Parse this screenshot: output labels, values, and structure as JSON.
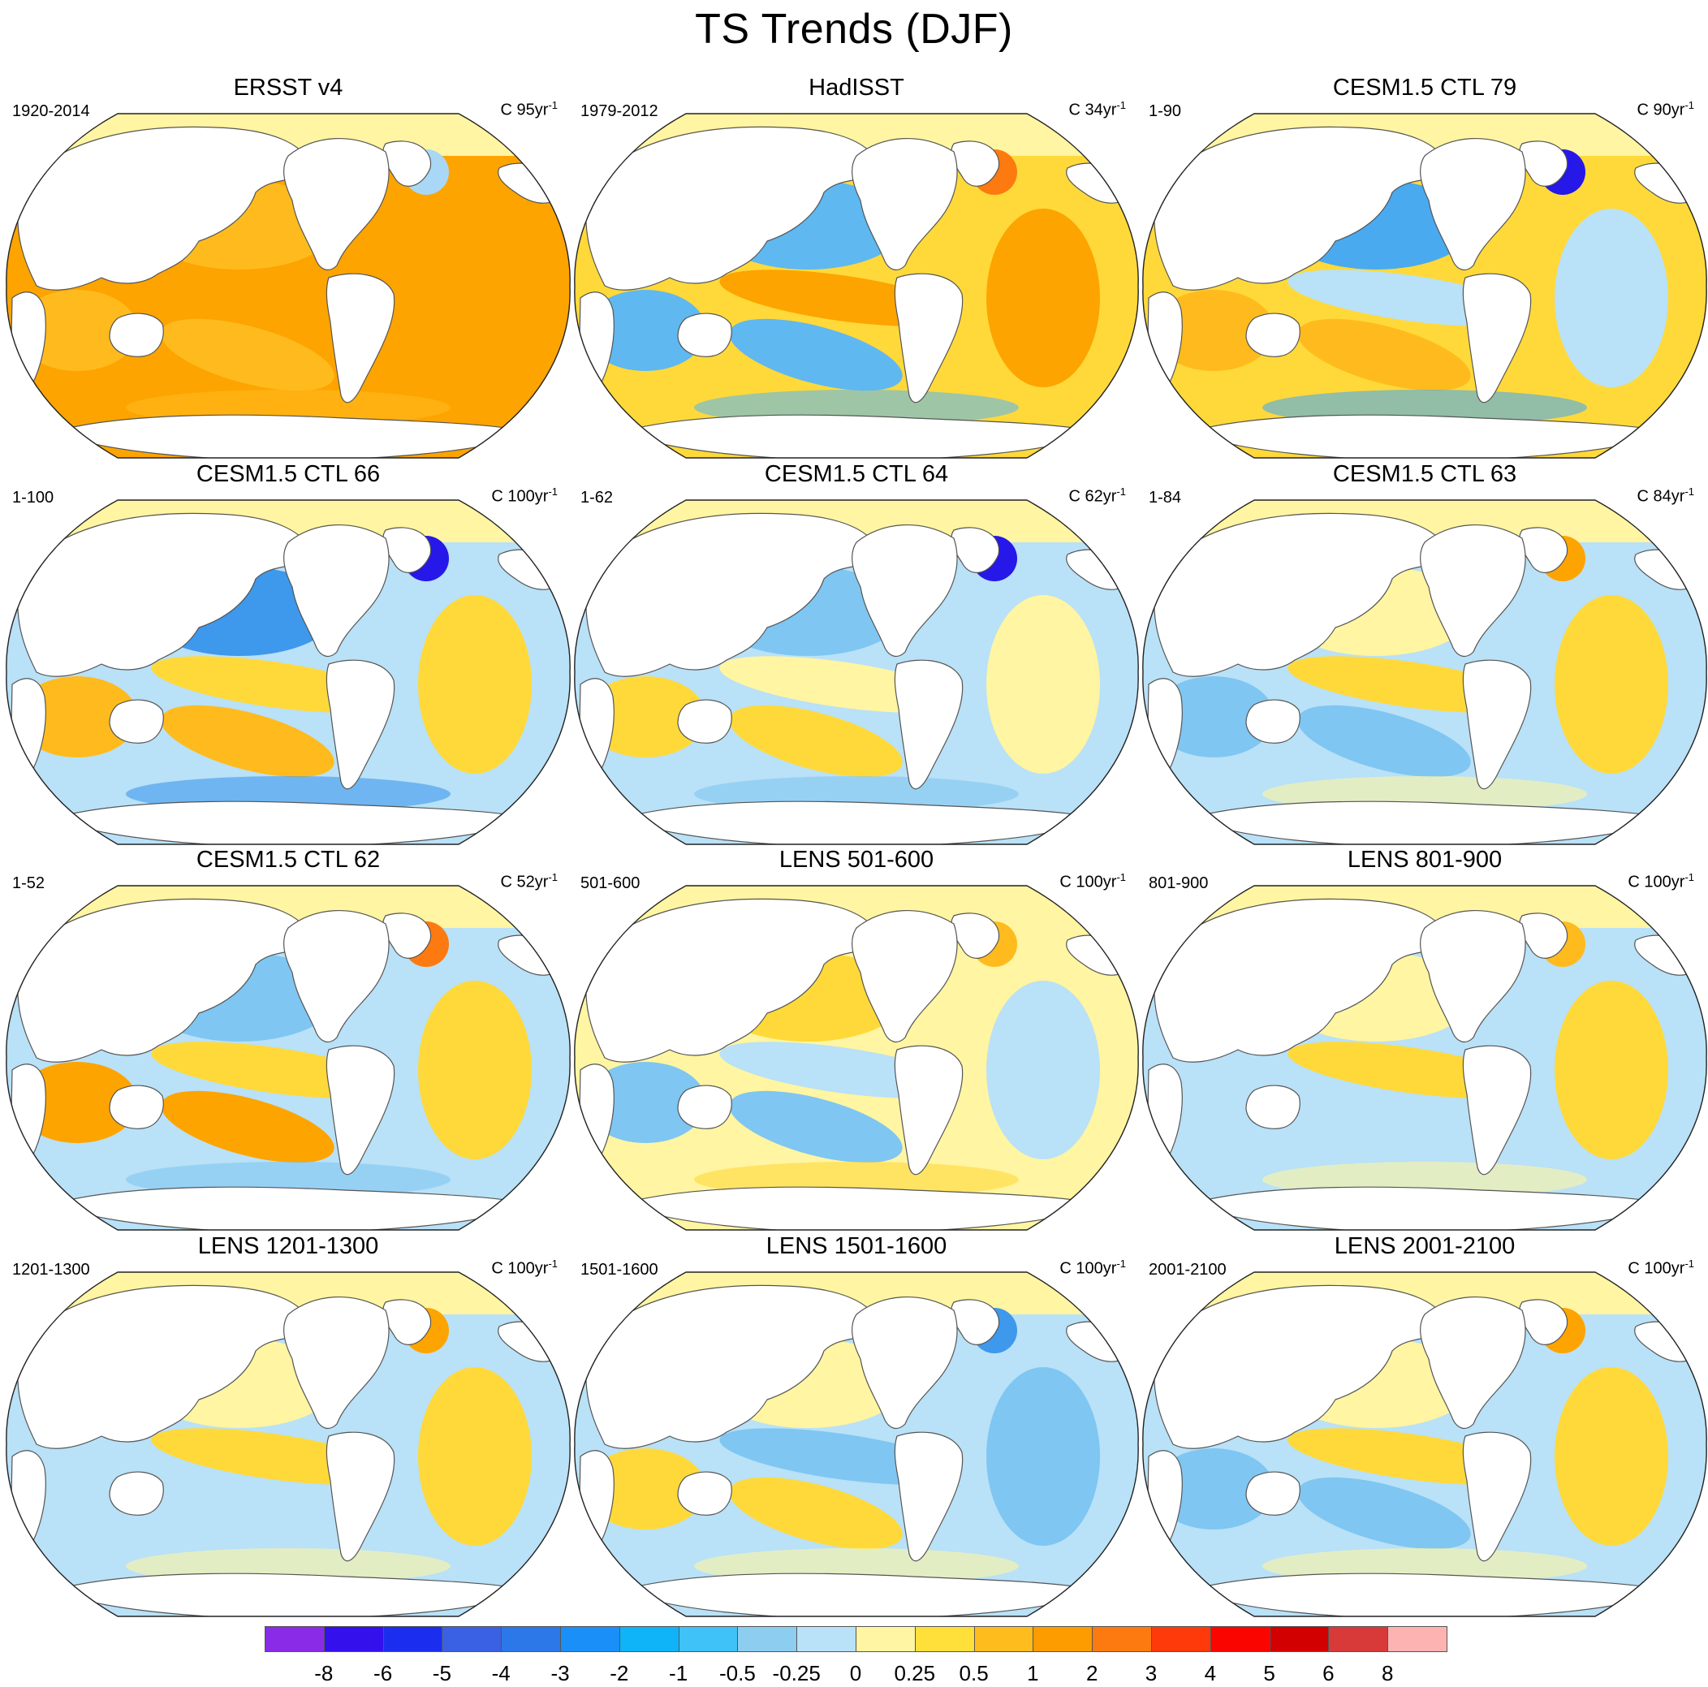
{
  "title": "TS Trends (DJF)",
  "panels": [
    {
      "title": "ERSST v4",
      "period": "1920-2014",
      "units_base": "C 95yr",
      "units_exp": "-1",
      "colors": {
        "ocean": "#fda400",
        "patch1": "#ffbb1d",
        "patch2": "#fda400",
        "patch3": "#ffbb1d",
        "patch4": "#a8d8f5",
        "arctic": "#fff5a2"
      }
    },
    {
      "title": "HadISST",
      "period": "1979-2012",
      "units_base": "C 34yr",
      "units_exp": "-1",
      "colors": {
        "ocean": "#ffd93a",
        "patch1": "#5fb8f0",
        "patch2": "#fda400",
        "patch3": "#5fb8f0",
        "patch4": "#fd7a10",
        "arctic": "#fff5a2"
      }
    },
    {
      "title": "CESM1.5 CTL 79",
      "period": "1-90",
      "units_base": "C 90yr",
      "units_exp": "-1",
      "colors": {
        "ocean": "#ffd93a",
        "patch1": "#49aaf0",
        "patch2": "#b9e1f7",
        "patch3": "#ffbb1d",
        "patch4": "#2618e8",
        "arctic": "#fff5a2"
      }
    },
    {
      "title": "CESM1.5 CTL 66",
      "period": "1-100",
      "units_base": "C 100yr",
      "units_exp": "-1",
      "colors": {
        "ocean": "#b9e1f7",
        "patch1": "#3e98ec",
        "patch2": "#ffd93a",
        "patch3": "#ffbb1d",
        "patch4": "#2618e8",
        "arctic": "#fff5a2"
      }
    },
    {
      "title": "CESM1.5 CTL 64",
      "period": "1-62",
      "units_base": "C 62yr",
      "units_exp": "-1",
      "colors": {
        "ocean": "#b9e1f7",
        "patch1": "#7fc6f2",
        "patch2": "#fff5a2",
        "patch3": "#ffd93a",
        "patch4": "#2618e8",
        "arctic": "#fff5a2"
      }
    },
    {
      "title": "CESM1.5 CTL 63",
      "period": "1-84",
      "units_base": "C 84yr",
      "units_exp": "-1",
      "colors": {
        "ocean": "#b9e1f7",
        "patch1": "#fff5a2",
        "patch2": "#ffd93a",
        "patch3": "#7fc6f2",
        "patch4": "#fda400",
        "arctic": "#fff5a2"
      }
    },
    {
      "title": "CESM1.5 CTL 62",
      "period": "1-52",
      "units_base": "C 52yr",
      "units_exp": "-1",
      "colors": {
        "ocean": "#b9e1f7",
        "patch1": "#7fc6f2",
        "patch2": "#ffd93a",
        "patch3": "#fda400",
        "patch4": "#fd7a10",
        "arctic": "#fff5a2"
      }
    },
    {
      "title": "LENS 501-600",
      "period": "501-600",
      "units_base": "C 100yr",
      "units_exp": "-1",
      "colors": {
        "ocean": "#fff5a2",
        "patch1": "#ffd93a",
        "patch2": "#b9e1f7",
        "patch3": "#7fc6f2",
        "patch4": "#ffbb1d",
        "arctic": "#fff5a2"
      }
    },
    {
      "title": "LENS 801-900",
      "period": "801-900",
      "units_base": "C 100yr",
      "units_exp": "-1",
      "colors": {
        "ocean": "#b9e1f7",
        "patch1": "#fff5a2",
        "patch2": "#ffd93a",
        "patch3": "#b9e1f7",
        "patch4": "#ffbb1d",
        "arctic": "#fff5a2"
      }
    },
    {
      "title": "LENS 1201-1300",
      "period": "1201-1300",
      "units_base": "C 100yr",
      "units_exp": "-1",
      "colors": {
        "ocean": "#b9e1f7",
        "patch1": "#fff5a2",
        "patch2": "#ffd93a",
        "patch3": "#b9e1f7",
        "patch4": "#fda400",
        "arctic": "#fff5a2"
      }
    },
    {
      "title": "LENS 1501-1600",
      "period": "1501-1600",
      "units_base": "C 100yr",
      "units_exp": "-1",
      "colors": {
        "ocean": "#b9e1f7",
        "patch1": "#fff5a2",
        "patch2": "#7fc6f2",
        "patch3": "#ffd93a",
        "patch4": "#3e98ec",
        "arctic": "#fff5a2"
      }
    },
    {
      "title": "LENS 2001-2100",
      "period": "2001-2100",
      "units_base": "C 100yr",
      "units_exp": "-1",
      "colors": {
        "ocean": "#b9e1f7",
        "patch1": "#fff5a2",
        "patch2": "#ffd93a",
        "patch3": "#7fc6f2",
        "patch4": "#fda400",
        "arctic": "#fff5a2"
      }
    }
  ],
  "colorbar": {
    "colors": [
      "#8a2be8",
      "#3410ec",
      "#1b2ef0",
      "#3a60e3",
      "#2d78e8",
      "#1b8ff8",
      "#0fb4f8",
      "#3fc2f7",
      "#8ccdf0",
      "#b9e1f7",
      "#fff5a2",
      "#ffdf3a",
      "#ffbd1d",
      "#fd9c00",
      "#fd7a10",
      "#fe3a0a",
      "#fa0500",
      "#d20000",
      "#d83a3a",
      "#feb3b3"
    ],
    "labels": [
      "-8",
      "-6",
      "-5",
      "-4",
      "-3",
      "-2",
      "-1",
      "-0.5",
      "-0.25",
      "0",
      "0.25",
      "0.5",
      "1",
      "2",
      "3",
      "4",
      "5",
      "6",
      "8"
    ]
  }
}
